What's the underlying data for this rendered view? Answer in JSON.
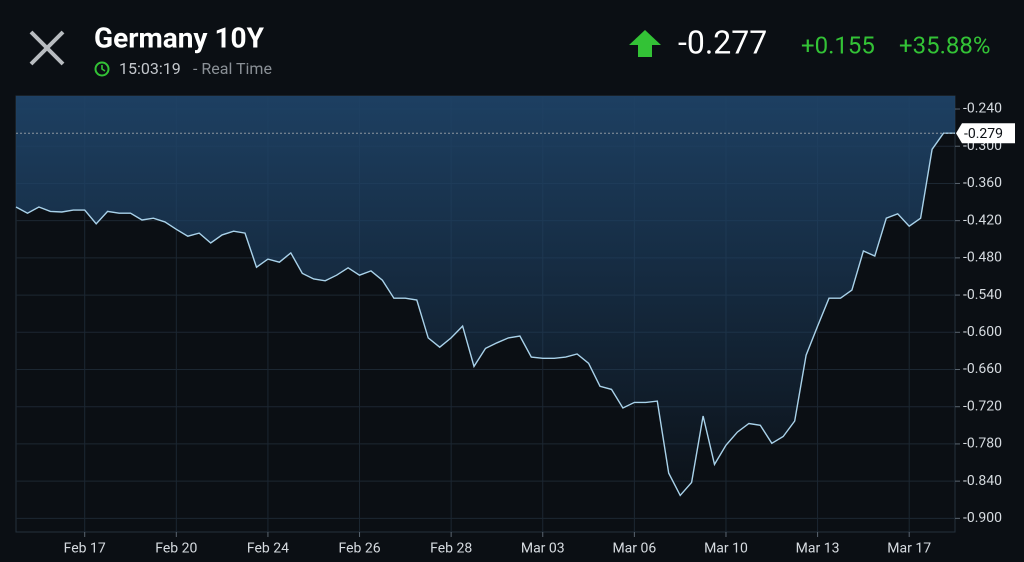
{
  "chart_data": {
    "type": "area",
    "title": "Germany 10Y",
    "time": "15:03:19",
    "time_note": "- Real Time",
    "quote": {
      "last": "-0.277",
      "change": "+0.155",
      "change_pct": "+35.88%"
    },
    "color": "#a9d2ea",
    "fill_color": "#1e4266",
    "up_color": "#33c236",
    "grid": true,
    "ylim": [
      -0.922,
      -0.219
    ],
    "yticks": [
      {
        "value": -0.24,
        "label": "-0.240"
      },
      {
        "value": -0.3,
        "label": "-0.300"
      },
      {
        "value": -0.36,
        "label": "-0.360"
      },
      {
        "value": -0.42,
        "label": "-0.420"
      },
      {
        "value": -0.48,
        "label": "-0.480"
      },
      {
        "value": -0.54,
        "label": "-0.540"
      },
      {
        "value": -0.6,
        "label": "-0.600"
      },
      {
        "value": -0.66,
        "label": "-0.660"
      },
      {
        "value": -0.72,
        "label": "-0.720"
      },
      {
        "value": -0.78,
        "label": "-0.780"
      },
      {
        "value": -0.84,
        "label": "-0.840"
      },
      {
        "value": -0.9,
        "label": "-0.900"
      }
    ],
    "current_marker": {
      "value": -0.279,
      "label": "-0.279"
    },
    "categories": [
      null,
      null,
      null,
      null,
      null,
      null,
      "Feb 17",
      null,
      null,
      null,
      null,
      null,
      null,
      null,
      "Feb 20",
      null,
      null,
      null,
      null,
      null,
      null,
      null,
      "Feb 24",
      null,
      null,
      null,
      null,
      null,
      null,
      null,
      "Feb 26",
      null,
      null,
      null,
      null,
      null,
      null,
      null,
      "Feb 28",
      null,
      null,
      null,
      null,
      null,
      null,
      null,
      "Mar 03",
      null,
      null,
      null,
      null,
      null,
      null,
      null,
      "Mar 06",
      null,
      null,
      null,
      null,
      null,
      null,
      null,
      "Mar 10",
      null,
      null,
      null,
      null,
      null,
      null,
      null,
      "Mar 13",
      null,
      null,
      null,
      null,
      null,
      null,
      null,
      "Mar 17",
      null,
      null,
      null,
      null
    ],
    "values": [
      -0.398,
      -0.408,
      -0.398,
      -0.405,
      -0.406,
      -0.403,
      -0.403,
      -0.425,
      -0.405,
      -0.408,
      -0.408,
      -0.419,
      -0.416,
      -0.422,
      -0.434,
      -0.445,
      -0.44,
      -0.456,
      -0.443,
      -0.437,
      -0.44,
      -0.495,
      -0.482,
      -0.487,
      -0.472,
      -0.505,
      -0.514,
      -0.517,
      -0.508,
      -0.496,
      -0.508,
      -0.501,
      -0.516,
      -0.545,
      -0.545,
      -0.548,
      -0.609,
      -0.624,
      -0.609,
      -0.59,
      -0.655,
      -0.626,
      -0.617,
      -0.609,
      -0.606,
      -0.64,
      -0.642,
      -0.642,
      -0.64,
      -0.635,
      -0.65,
      -0.687,
      -0.692,
      -0.722,
      -0.713,
      -0.713,
      -0.711,
      -0.827,
      -0.863,
      -0.842,
      -0.735,
      -0.813,
      -0.782,
      -0.761,
      -0.747,
      -0.75,
      -0.779,
      -0.768,
      -0.743,
      -0.637,
      -0.59,
      -0.545,
      -0.545,
      -0.532,
      -0.469,
      -0.477,
      -0.416,
      -0.409,
      -0.429,
      -0.416,
      -0.305,
      -0.279,
      -0.279
    ]
  }
}
